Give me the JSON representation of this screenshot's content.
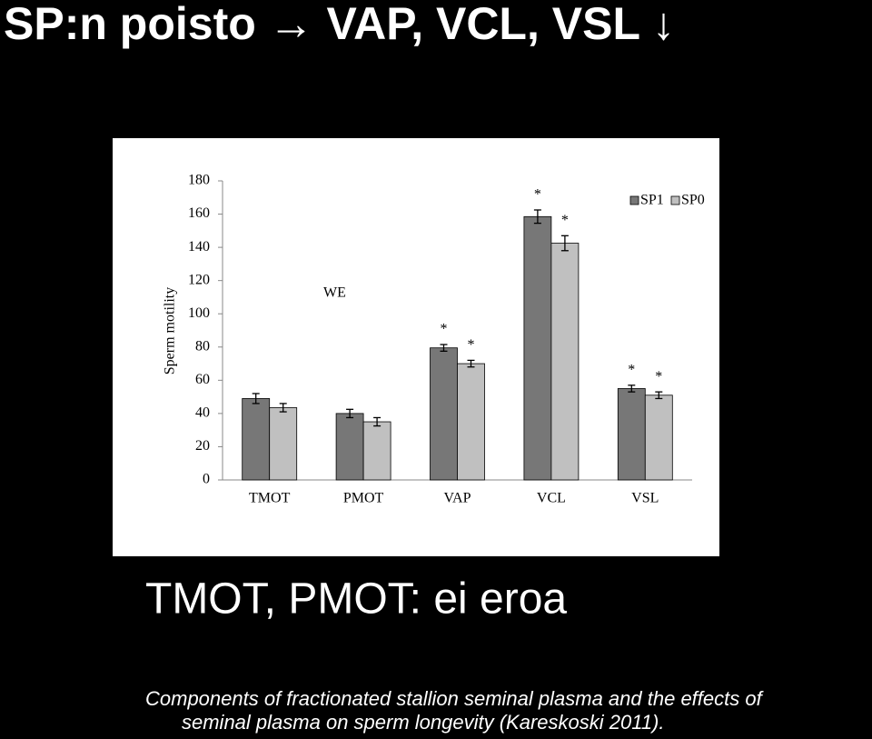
{
  "slide": {
    "title": "SP:n poisto → VAP, VCL, VSL ↓",
    "note": "TMOT, PMOT: ei eroa",
    "citation": [
      "Components of fractionated stallion seminal plasma and the effects of",
      "seminal plasma on sperm longevity (Kareskoski 2011)."
    ]
  },
  "chart_data": {
    "type": "bar",
    "ylabel": "Sperm motility",
    "annotation": "WE",
    "categories": [
      "TMOT",
      "PMOT",
      "VAP",
      "VCL",
      "VSL"
    ],
    "series": [
      {
        "name": "SP1",
        "color": "#777777",
        "values": [
          49,
          40,
          79.5,
          158.5,
          55
        ],
        "errors": [
          3,
          2.5,
          2,
          4,
          2
        ],
        "significance": [
          null,
          null,
          "*",
          "*",
          "*"
        ]
      },
      {
        "name": "SP0",
        "color": "#c0c0c0",
        "values": [
          43.5,
          35,
          70,
          142.5,
          51
        ],
        "errors": [
          2.5,
          2.5,
          2,
          4.5,
          2
        ],
        "significance": [
          null,
          null,
          "*",
          "*",
          "*"
        ]
      }
    ],
    "ylim": [
      0,
      180
    ],
    "yticks": [
      0,
      20,
      40,
      60,
      80,
      100,
      120,
      140,
      160,
      180
    ],
    "legend": "top-right"
  }
}
